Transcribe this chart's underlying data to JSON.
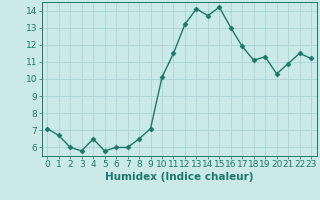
{
  "x": [
    0,
    1,
    2,
    3,
    4,
    5,
    6,
    7,
    8,
    9,
    10,
    11,
    12,
    13,
    14,
    15,
    16,
    17,
    18,
    19,
    20,
    21,
    22,
    23
  ],
  "y": [
    7.1,
    6.7,
    6.0,
    5.8,
    6.5,
    5.8,
    6.0,
    6.0,
    6.5,
    7.1,
    10.1,
    11.5,
    13.2,
    14.1,
    13.7,
    14.2,
    13.0,
    11.9,
    11.1,
    11.3,
    10.3,
    10.9,
    11.5,
    11.2
  ],
  "line_color": "#1a7a6a",
  "marker": "D",
  "marker_size": 2.5,
  "bg_color": "#cce9e9",
  "grid_color": "#aad4d4",
  "xlabel": "Humidex (Indice chaleur)",
  "xlim": [
    -0.5,
    23.5
  ],
  "ylim": [
    5.5,
    14.5
  ],
  "yticks": [
    6,
    7,
    8,
    9,
    10,
    11,
    12,
    13,
    14
  ],
  "xticks": [
    0,
    1,
    2,
    3,
    4,
    5,
    6,
    7,
    8,
    9,
    10,
    11,
    12,
    13,
    14,
    15,
    16,
    17,
    18,
    19,
    20,
    21,
    22,
    23
  ],
  "tick_label_fontsize": 6.5,
  "xlabel_fontsize": 7.5,
  "line_width": 1.0
}
